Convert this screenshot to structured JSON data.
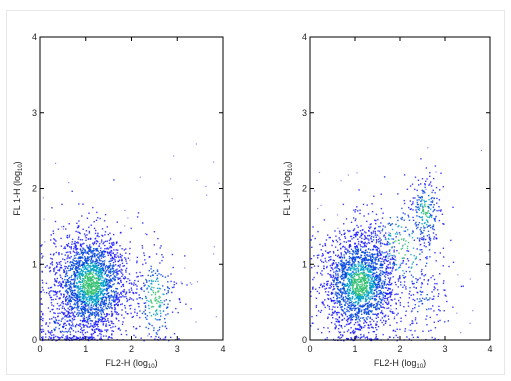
{
  "chart_data": [
    {
      "type": "scatter",
      "title": "",
      "xlabel": "FL2-H (log",
      "xlabel_sub": "10",
      "xlabel_end": ")",
      "ylabel": "FL 1-H (log",
      "ylabel_sub": "10",
      "ylabel_end": ")",
      "xlim": [
        0,
        4
      ],
      "ylim": [
        0,
        4
      ],
      "xticks": [
        "0",
        "1",
        "2",
        "3",
        "4"
      ],
      "yticks": [
        "0",
        "1",
        "2",
        "3",
        "4"
      ],
      "grid": false,
      "density_colormap": [
        "#1a1aff",
        "#0044dd",
        "#00a0c8",
        "#33c070"
      ],
      "populations": [
        {
          "x": 1.1,
          "y": 0.75,
          "sx": 0.42,
          "sy": 0.35,
          "weight": 0.85
        },
        {
          "x": 2.5,
          "y": 0.55,
          "sx": 0.25,
          "sy": 0.35,
          "weight": 0.09
        },
        {
          "x": 0.5,
          "y": 0.2,
          "sx": 0.4,
          "sy": 0.2,
          "weight": 0.06
        }
      ]
    },
    {
      "type": "scatter",
      "title": "",
      "xlabel": "FL2-H (log",
      "xlabel_sub": "10",
      "xlabel_end": ")",
      "ylabel": "FL 1-H (log",
      "ylabel_sub": "10",
      "ylabel_end": ")",
      "xlim": [
        0,
        4
      ],
      "ylim": [
        0,
        4
      ],
      "xticks": [
        "0",
        "1",
        "2",
        "3",
        "4"
      ],
      "yticks": [
        "0",
        "1",
        "2",
        "3",
        "4"
      ],
      "grid": false,
      "density_colormap": [
        "#1a1aff",
        "#0044dd",
        "#00a0c8",
        "#33c070"
      ],
      "populations": [
        {
          "x": 1.1,
          "y": 0.75,
          "sx": 0.42,
          "sy": 0.35,
          "weight": 0.78
        },
        {
          "x": 2.55,
          "y": 1.7,
          "sx": 0.18,
          "sy": 0.25,
          "weight": 0.08
        },
        {
          "x": 2.0,
          "y": 1.2,
          "sx": 0.5,
          "sy": 0.4,
          "weight": 0.09
        },
        {
          "x": 2.5,
          "y": 0.5,
          "sx": 0.3,
          "sy": 0.3,
          "weight": 0.05
        }
      ]
    }
  ]
}
